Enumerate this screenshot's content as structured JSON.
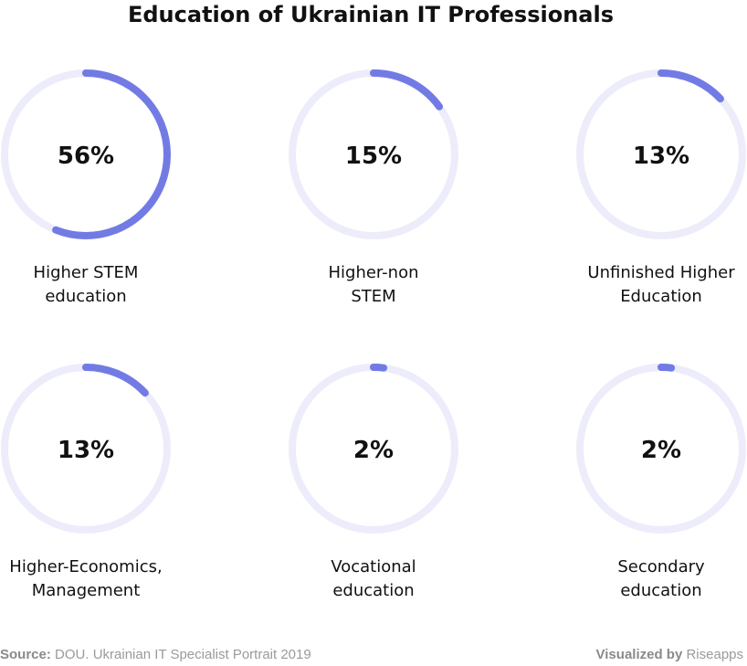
{
  "chart_data": {
    "type": "donut",
    "title": "Education of Ukrainian IT Professionals",
    "unit": "%",
    "colors": {
      "progress": "#727be4",
      "track": "#ececfb"
    },
    "series": [
      {
        "label_lines": [
          "Higher STEM",
          "education"
        ],
        "value": 56,
        "value_label": "56%"
      },
      {
        "label_lines": [
          "Higher-non",
          "STEM"
        ],
        "value": 15,
        "value_label": "15%"
      },
      {
        "label_lines": [
          "Unfinished Higher",
          "Education"
        ],
        "value": 13,
        "value_label": "13%"
      },
      {
        "label_lines": [
          "Higher-Economics,",
          "Management"
        ],
        "value": 13,
        "value_label": "13%"
      },
      {
        "label_lines": [
          "Vocational",
          "education"
        ],
        "value": 2,
        "value_label": "2%"
      },
      {
        "label_lines": [
          "Secondary",
          "education"
        ],
        "value": 2,
        "value_label": "2%"
      }
    ]
  },
  "footer": {
    "source_prefix": "Source:",
    "source_text": " DOU. Ukrainian IT Specialist Portrait 2019",
    "credit_prefix": "Visualized by",
    "credit_text": " Riseapps"
  }
}
